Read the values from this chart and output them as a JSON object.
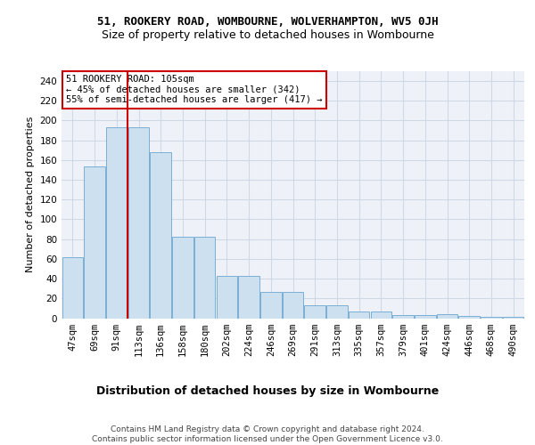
{
  "title1": "51, ROOKERY ROAD, WOMBOURNE, WOLVERHAMPTON, WV5 0JH",
  "title2": "Size of property relative to detached houses in Wombourne",
  "xlabel": "Distribution of detached houses by size in Wombourne",
  "ylabel": "Number of detached properties",
  "categories": [
    "47sqm",
    "69sqm",
    "91sqm",
    "113sqm",
    "136sqm",
    "158sqm",
    "180sqm",
    "202sqm",
    "224sqm",
    "246sqm",
    "269sqm",
    "291sqm",
    "313sqm",
    "335sqm",
    "357sqm",
    "379sqm",
    "401sqm",
    "424sqm",
    "446sqm",
    "468sqm",
    "490sqm"
  ],
  "values": [
    62,
    154,
    193,
    193,
    168,
    82,
    82,
    43,
    43,
    27,
    27,
    13,
    13,
    7,
    7,
    3,
    3,
    4,
    2,
    1,
    1
  ],
  "bar_color": "#cce0f0",
  "bar_edge_color": "#7aafd4",
  "vline_position": 2.5,
  "vline_color": "#cc0000",
  "annotation_text": "51 ROOKERY ROAD: 105sqm\n← 45% of detached houses are smaller (342)\n55% of semi-detached houses are larger (417) →",
  "annotation_box_color": "#ffffff",
  "annotation_box_edge": "#cc0000",
  "ylim": [
    0,
    250
  ],
  "yticks": [
    0,
    20,
    40,
    60,
    80,
    100,
    120,
    140,
    160,
    180,
    200,
    220,
    240
  ],
  "grid_color": "#d0d8e8",
  "background_color": "#eef2f8",
  "footer": "Contains HM Land Registry data © Crown copyright and database right 2024.\nContains public sector information licensed under the Open Government Licence v3.0.",
  "title1_fontsize": 9,
  "title2_fontsize": 9,
  "xlabel_fontsize": 9,
  "ylabel_fontsize": 8,
  "tick_fontsize": 7.5,
  "annotation_fontsize": 7.5,
  "footer_fontsize": 6.5
}
